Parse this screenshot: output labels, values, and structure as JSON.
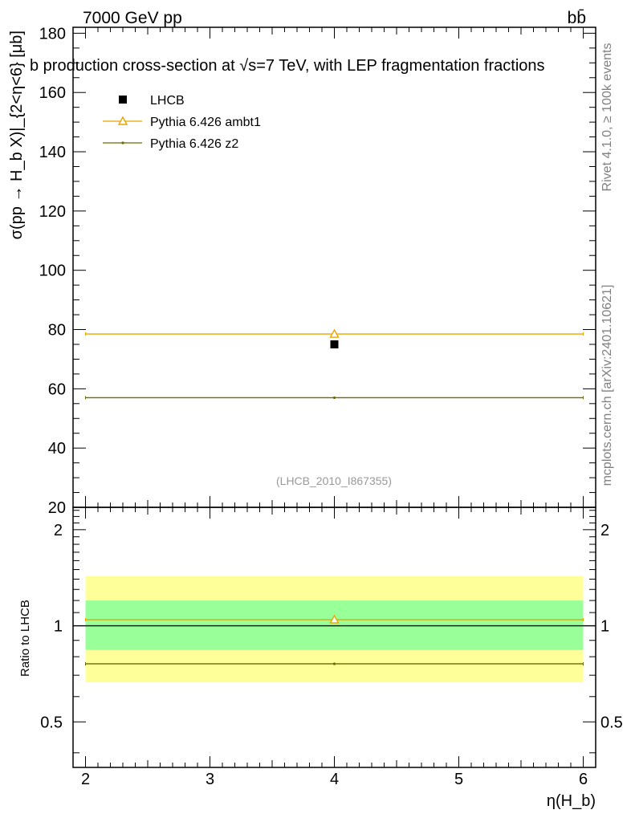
{
  "header": {
    "energy_label": "7000 GeV pp",
    "process_label": "bb̄",
    "plot_title": "b production cross-section at √s=7 TeV, with LEP fragmentation fractions",
    "rivet_label": "Rivet 4.1.0, ≥ 100k events",
    "source_label": "mcplots.cern.ch [arXiv:2401.10621]",
    "analysis_label": "(LHCB_2010_I867355)"
  },
  "chart_data": [
    {
      "type": "scatter",
      "panel": "main",
      "ylabel": "σ(pp → H_b X)|_{2<η<6} [μb]",
      "ylim": [
        20,
        182
      ],
      "xlim": [
        1.9,
        6.1
      ],
      "y_ticks": [
        20,
        40,
        60,
        80,
        100,
        120,
        140,
        160,
        180
      ],
      "legend_position": "top-left",
      "series": [
        {
          "name": "LHCB",
          "color": "#000000",
          "marker": "filled-square",
          "x": [
            4.0
          ],
          "xerr_low": [
            2.0
          ],
          "xerr_high": [
            2.0
          ],
          "y": [
            75.0
          ]
        },
        {
          "name": "Pythia 6.426 ambt1",
          "color": "#e8a500",
          "marker": "open-triangle",
          "x": [
            4.0
          ],
          "xerr_low": [
            2.0
          ],
          "xerr_high": [
            2.0
          ],
          "y": [
            78.5
          ]
        },
        {
          "name": "Pythia 6.426 z2",
          "color": "#6b6b00",
          "marker": "dot",
          "x": [
            4.0
          ],
          "xerr_low": [
            2.0
          ],
          "xerr_high": [
            2.0
          ],
          "y": [
            57.0
          ]
        }
      ]
    },
    {
      "type": "scatter",
      "panel": "ratio",
      "ylabel": "Ratio to LHCB",
      "xlabel": "η(H_b)",
      "ylim": [
        0.36,
        2.35
      ],
      "yscale": "log",
      "xlim": [
        1.9,
        6.1
      ],
      "x_ticks": [
        2,
        3,
        4,
        5,
        6
      ],
      "y_ticks": [
        0.5,
        1,
        2
      ],
      "bands": [
        {
          "color": "#ffff99",
          "x": [
            2,
            6
          ],
          "ylow": 0.665,
          "yhigh": 1.43
        },
        {
          "color": "#99ff99",
          "x": [
            2,
            6
          ],
          "ylow": 0.84,
          "yhigh": 1.2
        }
      ],
      "reference_line": 1.0,
      "series": [
        {
          "name": "Pythia 6.426 ambt1",
          "color": "#e8a500",
          "marker": "open-triangle",
          "x": [
            4.0
          ],
          "xerr_low": [
            2.0
          ],
          "xerr_high": [
            2.0
          ],
          "y": [
            1.045
          ]
        },
        {
          "name": "Pythia 6.426 z2",
          "color": "#6b6b00",
          "marker": "dot",
          "x": [
            4.0
          ],
          "xerr_low": [
            2.0
          ],
          "xerr_high": [
            2.0
          ],
          "y": [
            0.76
          ]
        }
      ]
    }
  ]
}
